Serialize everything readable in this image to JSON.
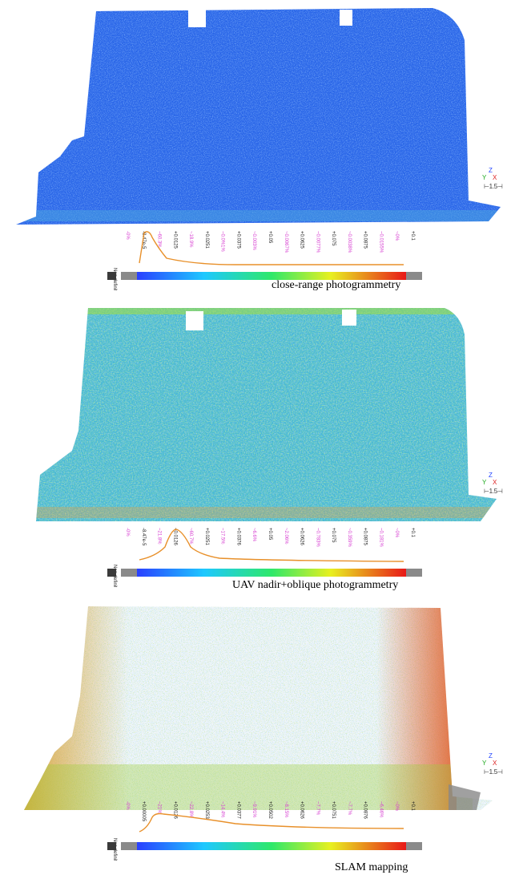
{
  "axis_widget": {
    "z": "Z",
    "y": "Y",
    "x": "X",
    "scale": "⊢1.5⊣"
  },
  "panels": [
    {
      "id": "p1",
      "caption": "close-range photogrammetry",
      "palette": "blue",
      "hist_left": "Non definite",
      "hist_labels": [
        {
          "t": "-0%",
          "c": "pink"
        },
        {
          "t": "-8.47e-5",
          "c": "black"
        },
        {
          "t": "~60.3%",
          "c": "pink"
        },
        {
          "t": "+0.0125",
          "c": "black"
        },
        {
          "t": "~18.9%",
          "c": "pink"
        },
        {
          "t": "+0.0251",
          "c": "black"
        },
        {
          "t": "~0.0%1%",
          "c": "pink"
        },
        {
          "t": "+0.0375",
          "c": "black"
        },
        {
          "t": "~0.003%",
          "c": "pink"
        },
        {
          "t": "+0.05",
          "c": "black"
        },
        {
          "t": "~0.0067%",
          "c": "pink"
        },
        {
          "t": "+0.0625",
          "c": "black"
        },
        {
          "t": "~0.0077%",
          "c": "pink"
        },
        {
          "t": "+0.075",
          "c": "black"
        },
        {
          "t": "~0.0038%",
          "c": "pink"
        },
        {
          "t": "+0.0875",
          "c": "black"
        },
        {
          "t": "~0.0155%",
          "c": "pink"
        },
        {
          "t": "~0%",
          "c": "pink"
        },
        {
          "t": "+0.1",
          "c": "black"
        }
      ]
    },
    {
      "id": "p2",
      "caption": "UAV nadir+oblique photogrammetry",
      "palette": "mixed",
      "hist_left": "Non definite",
      "hist_labels": [
        {
          "t": "-0%",
          "c": "pink"
        },
        {
          "t": "-8.47e-5",
          "c": "black"
        },
        {
          "t": "~21.8%",
          "c": "pink"
        },
        {
          "t": "+0.0126",
          "c": "black"
        },
        {
          "t": "~60.7%",
          "c": "pink"
        },
        {
          "t": "+0.0251",
          "c": "black"
        },
        {
          "t": "~17.5%",
          "c": "pink"
        },
        {
          "t": "+0.0376",
          "c": "black"
        },
        {
          "t": "~6.6%",
          "c": "pink"
        },
        {
          "t": "+0.05",
          "c": "black"
        },
        {
          "t": "~2.06%",
          "c": "pink"
        },
        {
          "t": "+0.0626",
          "c": "black"
        },
        {
          "t": "~0.783%",
          "c": "pink"
        },
        {
          "t": "+0.075",
          "c": "black"
        },
        {
          "t": "~0.359%",
          "c": "pink"
        },
        {
          "t": "+0.0875",
          "c": "black"
        },
        {
          "t": "~0.181%",
          "c": "pink"
        },
        {
          "t": "~0%",
          "c": "pink"
        },
        {
          "t": "+0.1",
          "c": "black"
        }
      ]
    },
    {
      "id": "p3",
      "caption": "SLAM mapping",
      "palette": "slam",
      "hist_left": "Non definite",
      "hist_labels": [
        {
          "t": "-0%",
          "c": "pink"
        },
        {
          "t": "+0.00005",
          "c": "black"
        },
        {
          "t": "~21%",
          "c": "pink"
        },
        {
          "t": "+0.0126",
          "c": "black"
        },
        {
          "t": "~22.8%",
          "c": "pink"
        },
        {
          "t": "+0.0253",
          "c": "black"
        },
        {
          "t": "~14.4%",
          "c": "pink"
        },
        {
          "t": "+0.0377",
          "c": "black"
        },
        {
          "t": "~9.91%",
          "c": "pink"
        },
        {
          "t": "+0.0502",
          "c": "black"
        },
        {
          "t": "~8.15%",
          "c": "pink"
        },
        {
          "t": "+0.0626",
          "c": "black"
        },
        {
          "t": "~7.7%",
          "c": "pink"
        },
        {
          "t": "+0.0751",
          "c": "black"
        },
        {
          "t": "~7.7%",
          "c": "pink"
        },
        {
          "t": "+0.0876",
          "c": "black"
        },
        {
          "t": "~6.46%",
          "c": "pink"
        },
        {
          "t": "~0%",
          "c": "pink"
        },
        {
          "t": "+0.1",
          "c": "black"
        }
      ]
    }
  ]
}
